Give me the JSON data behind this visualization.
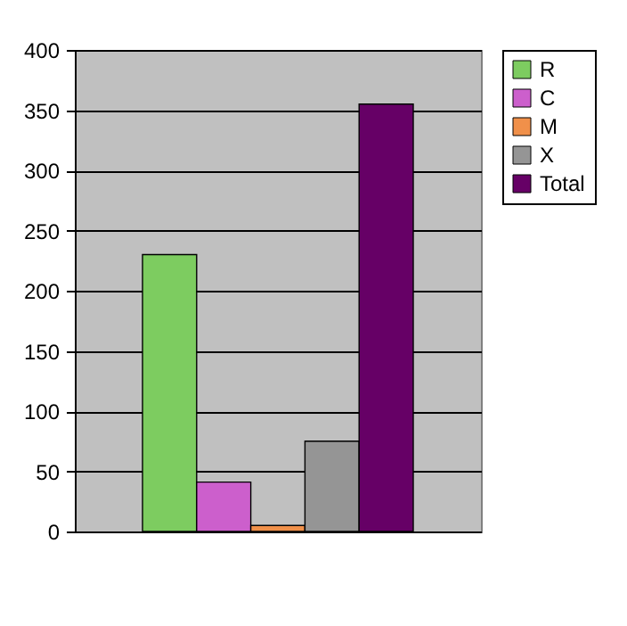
{
  "chart_data": {
    "type": "bar",
    "categories": [
      null
    ],
    "series": [
      {
        "name": "R",
        "color": "#7dcc60",
        "values": [
          230
        ]
      },
      {
        "name": "C",
        "color": "#cc5fcc",
        "values": [
          41
        ]
      },
      {
        "name": "M",
        "color": "#f0904a",
        "values": [
          5
        ]
      },
      {
        "name": "X",
        "color": "#959595",
        "values": [
          75
        ]
      },
      {
        "name": "Total",
        "color": "#660066",
        "values": [
          355
        ]
      }
    ],
    "ylim": [
      0,
      400
    ],
    "yticks": [
      0,
      50,
      100,
      150,
      200,
      250,
      300,
      350,
      400
    ],
    "grid": "y",
    "legend": "right"
  }
}
